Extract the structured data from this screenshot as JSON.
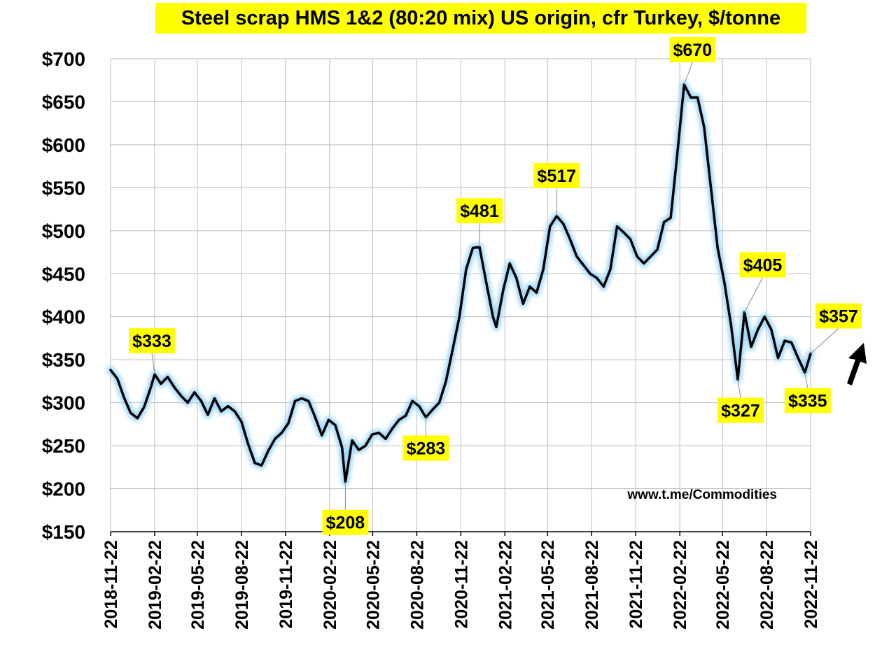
{
  "chart_data": {
    "type": "line",
    "title": "Steel scrap HMS 1&2 (80:20 mix) US origin, cfr Turkey, $/tonne",
    "xlabel": "",
    "ylabel": "",
    "ylim": [
      150,
      700
    ],
    "y_ticks": [
      150,
      200,
      250,
      300,
      350,
      400,
      450,
      500,
      550,
      600,
      650,
      700
    ],
    "y_tick_labels": [
      "$150",
      "$200",
      "$250",
      "$300",
      "$350",
      "$400",
      "$450",
      "$500",
      "$550",
      "$600",
      "$650",
      "$700"
    ],
    "x_range": [
      "2018-11-22",
      "2022-11-22"
    ],
    "x_ticks": [
      "2018-11-22",
      "2019-02-22",
      "2019-05-22",
      "2019-08-22",
      "2019-11-22",
      "2020-02-22",
      "2020-05-22",
      "2020-08-22",
      "2020-11-22",
      "2021-02-22",
      "2021-05-22",
      "2021-08-22",
      "2021-11-22",
      "2022-02-22",
      "2022-05-22",
      "2022-08-22",
      "2022-11-22"
    ],
    "grid": true,
    "legend": "none",
    "series": [
      {
        "color": "#000000",
        "points": [
          [
            "2018-11-22",
            338
          ],
          [
            "2018-12-06",
            328
          ],
          [
            "2018-12-20",
            306
          ],
          [
            "2019-01-03",
            288
          ],
          [
            "2019-01-17",
            282
          ],
          [
            "2019-01-31",
            295
          ],
          [
            "2019-02-14",
            318
          ],
          [
            "2019-02-22",
            333
          ],
          [
            "2019-03-07",
            322
          ],
          [
            "2019-03-21",
            330
          ],
          [
            "2019-04-04",
            318
          ],
          [
            "2019-04-18",
            308
          ],
          [
            "2019-05-02",
            300
          ],
          [
            "2019-05-16",
            312
          ],
          [
            "2019-05-30",
            302
          ],
          [
            "2019-06-13",
            286
          ],
          [
            "2019-06-27",
            305
          ],
          [
            "2019-07-11",
            290
          ],
          [
            "2019-07-25",
            296
          ],
          [
            "2019-08-08",
            290
          ],
          [
            "2019-08-22",
            278
          ],
          [
            "2019-09-05",
            252
          ],
          [
            "2019-09-19",
            230
          ],
          [
            "2019-10-03",
            227
          ],
          [
            "2019-10-17",
            244
          ],
          [
            "2019-10-31",
            258
          ],
          [
            "2019-11-14",
            265
          ],
          [
            "2019-11-28",
            276
          ],
          [
            "2019-12-12",
            302
          ],
          [
            "2019-12-26",
            305
          ],
          [
            "2020-01-09",
            302
          ],
          [
            "2020-01-23",
            283
          ],
          [
            "2020-02-06",
            262
          ],
          [
            "2020-02-20",
            280
          ],
          [
            "2020-03-05",
            274
          ],
          [
            "2020-03-19",
            248
          ],
          [
            "2020-03-26",
            208
          ],
          [
            "2020-04-09",
            256
          ],
          [
            "2020-04-23",
            245
          ],
          [
            "2020-05-07",
            250
          ],
          [
            "2020-05-21",
            263
          ],
          [
            "2020-06-04",
            265
          ],
          [
            "2020-06-18",
            258
          ],
          [
            "2020-07-02",
            270
          ],
          [
            "2020-07-16",
            280
          ],
          [
            "2020-07-30",
            285
          ],
          [
            "2020-08-13",
            302
          ],
          [
            "2020-08-27",
            296
          ],
          [
            "2020-09-10",
            283
          ],
          [
            "2020-09-24",
            292
          ],
          [
            "2020-10-08",
            300
          ],
          [
            "2020-10-22",
            325
          ],
          [
            "2020-11-05",
            362
          ],
          [
            "2020-11-19",
            400
          ],
          [
            "2020-12-03",
            455
          ],
          [
            "2020-12-17",
            480
          ],
          [
            "2020-12-31",
            481
          ],
          [
            "2021-01-14",
            440
          ],
          [
            "2021-01-28",
            400
          ],
          [
            "2021-02-04",
            388
          ],
          [
            "2021-02-18",
            430
          ],
          [
            "2021-03-04",
            462
          ],
          [
            "2021-03-18",
            445
          ],
          [
            "2021-04-01",
            415
          ],
          [
            "2021-04-15",
            435
          ],
          [
            "2021-04-29",
            428
          ],
          [
            "2021-05-13",
            455
          ],
          [
            "2021-05-27",
            505
          ],
          [
            "2021-06-10",
            517
          ],
          [
            "2021-06-24",
            508
          ],
          [
            "2021-07-08",
            490
          ],
          [
            "2021-07-22",
            470
          ],
          [
            "2021-08-05",
            460
          ],
          [
            "2021-08-19",
            450
          ],
          [
            "2021-09-02",
            445
          ],
          [
            "2021-09-16",
            435
          ],
          [
            "2021-09-30",
            455
          ],
          [
            "2021-10-14",
            505
          ],
          [
            "2021-10-28",
            498
          ],
          [
            "2021-11-11",
            490
          ],
          [
            "2021-11-25",
            470
          ],
          [
            "2021-12-09",
            462
          ],
          [
            "2021-12-23",
            470
          ],
          [
            "2022-01-06",
            478
          ],
          [
            "2022-01-20",
            510
          ],
          [
            "2022-02-03",
            515
          ],
          [
            "2022-02-17",
            590
          ],
          [
            "2022-03-03",
            670
          ],
          [
            "2022-03-17",
            655
          ],
          [
            "2022-03-31",
            655
          ],
          [
            "2022-04-14",
            620
          ],
          [
            "2022-04-28",
            550
          ],
          [
            "2022-05-12",
            480
          ],
          [
            "2022-05-26",
            440
          ],
          [
            "2022-06-09",
            390
          ],
          [
            "2022-06-23",
            327
          ],
          [
            "2022-07-07",
            405
          ],
          [
            "2022-07-21",
            365
          ],
          [
            "2022-08-04",
            385
          ],
          [
            "2022-08-18",
            400
          ],
          [
            "2022-09-01",
            385
          ],
          [
            "2022-09-15",
            352
          ],
          [
            "2022-09-29",
            372
          ],
          [
            "2022-10-13",
            370
          ],
          [
            "2022-10-27",
            352
          ],
          [
            "2022-11-10",
            335
          ],
          [
            "2022-11-22",
            357
          ]
        ]
      }
    ],
    "annotations": [
      {
        "label": "$333",
        "date": "2019-02-22",
        "value": 333
      },
      {
        "label": "$208",
        "date": "2020-03-26",
        "value": 208
      },
      {
        "label": "$283",
        "date": "2020-09-10",
        "value": 283
      },
      {
        "label": "$481",
        "date": "2020-12-31",
        "value": 481
      },
      {
        "label": "$517",
        "date": "2021-06-10",
        "value": 517
      },
      {
        "label": "$670",
        "date": "2022-03-03",
        "value": 670
      },
      {
        "label": "$327",
        "date": "2022-06-23",
        "value": 327
      },
      {
        "label": "$405",
        "date": "2022-07-07",
        "value": 405
      },
      {
        "label": "$335",
        "date": "2022-11-10",
        "value": 335
      },
      {
        "label": "$357",
        "date": "2022-11-22",
        "value": 357
      }
    ],
    "source_label": "www.t.me/Commodities",
    "line_color": "#000000",
    "glow_color": "#9fd8f7",
    "label_bg": "#ffff00"
  }
}
